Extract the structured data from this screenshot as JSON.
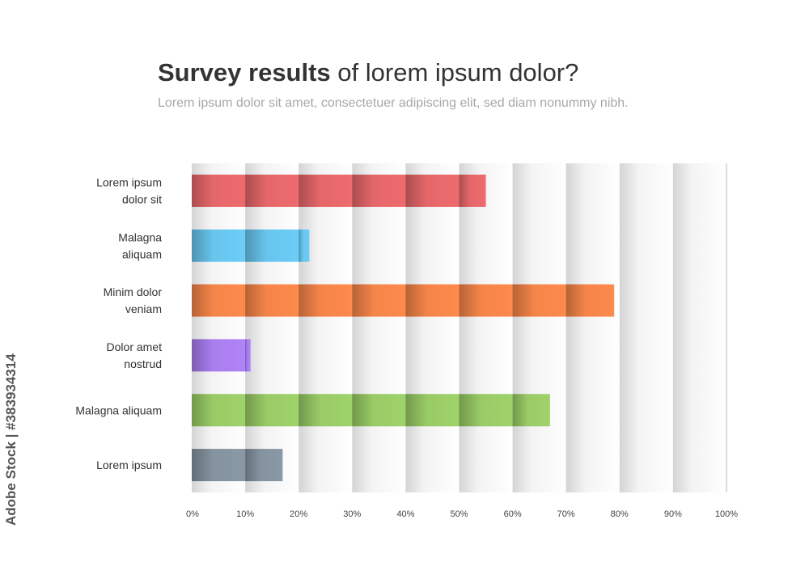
{
  "title_bold": "Survey results",
  "title_rest": "of lorem ipsum dolor?",
  "subtitle": "Lorem ipsum dolor sit amet, consectetuer adipiscing elit, sed diam nonummy nibh.",
  "watermark": "Adobe Stock | #383934314",
  "chart_data": {
    "type": "bar",
    "orientation": "horizontal",
    "title": "Survey results of lorem ipsum dolor?",
    "subtitle": "Lorem ipsum dolor sit amet, consectetuer adipiscing elit, sed diam nonummy nibh.",
    "categories": [
      [
        "Lorem ipsum",
        "dolor sit"
      ],
      [
        "Malagna",
        "aliquam"
      ],
      [
        "Minim dolor",
        "veniam"
      ],
      [
        "Dolor amet",
        "nostrud"
      ],
      [
        "Malagna aliquam"
      ],
      [
        "Lorem ipsum"
      ]
    ],
    "values": [
      55,
      22,
      79,
      11,
      67,
      17
    ],
    "colors": [
      "#ee6b6e",
      "#6ccdf7",
      "#fe8a4c",
      "#b083f8",
      "#9fd36a",
      "#8a99a6"
    ],
    "xlim": [
      0,
      100
    ],
    "x_ticks": [
      "0%",
      "10%",
      "20%",
      "30%",
      "40%",
      "50%",
      "60%",
      "70%",
      "80%",
      "90%",
      "100%"
    ],
    "xlabel": "",
    "ylabel": "",
    "grid": true,
    "legend": "none"
  }
}
